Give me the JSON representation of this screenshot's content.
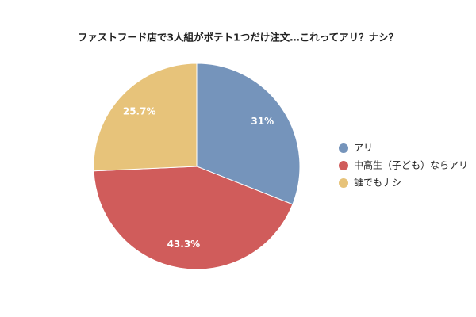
{
  "chart_data": {
    "type": "pie",
    "title": "ファストフード店で3人組がポテト1つだけ注文…これってアリ？ナシ？",
    "categories": [
      "アリ",
      "中高生（子ども）ならアリ",
      "誰でもナシ"
    ],
    "values": [
      31,
      43.3,
      25.7
    ],
    "value_labels": [
      "31%",
      "43.3%",
      "25.7%"
    ],
    "colors": [
      "#7594bb",
      "#d05c5b",
      "#e7c37a"
    ],
    "legend": "right"
  }
}
